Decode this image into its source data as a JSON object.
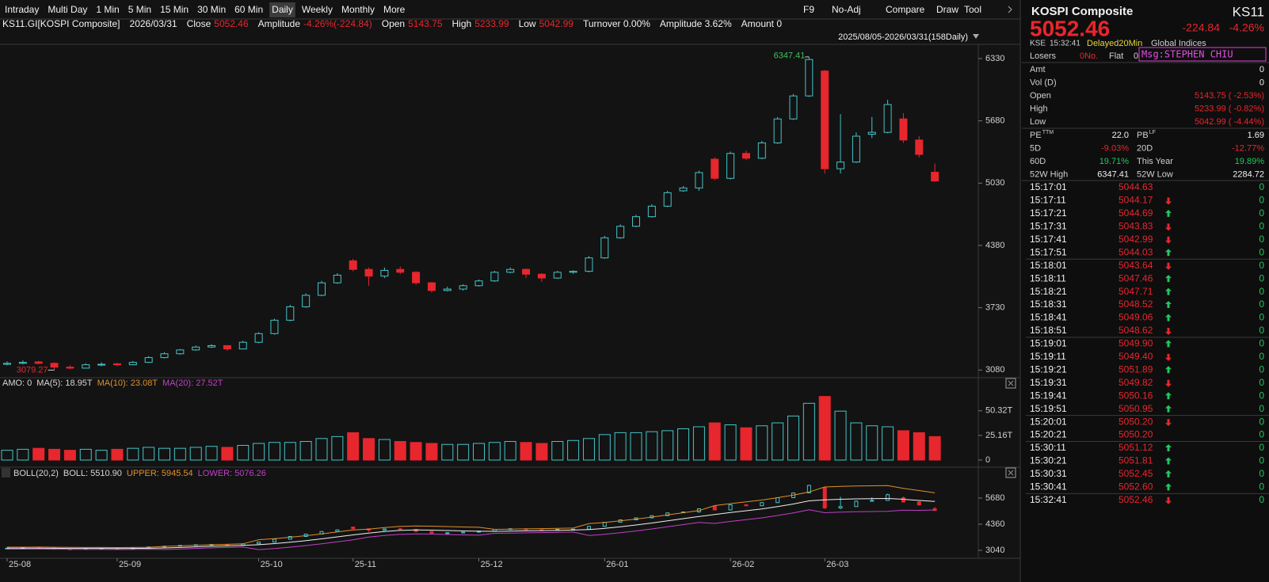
{
  "toolbar": {
    "items": [
      "Intraday",
      "Multi Day",
      "1 Min",
      "5 Min",
      "15 Min",
      "30 Min",
      "60 Min",
      "Daily",
      "Weekly",
      "Monthly",
      "More"
    ],
    "active": 7,
    "right": [
      "F9",
      "No-Adj",
      "Compare",
      "Draw",
      "Tool"
    ]
  },
  "info": [
    {
      "label": "KS11.GI[KOSPI Composite]"
    },
    {
      "label": "2026/03/31"
    },
    {
      "label": "Close",
      "value": "5052.46"
    },
    {
      "label": "Amplitude",
      "value": "-4.26%(-224.84)"
    },
    {
      "label": "Open",
      "value": "5143.75"
    },
    {
      "label": "High",
      "value": "5233.99"
    },
    {
      "label": "Low",
      "value": "5042.99"
    },
    {
      "label": "Turnover 0.00%"
    },
    {
      "label": "Amplitude 3.62%"
    },
    {
      "label": "Amount 0"
    }
  ],
  "chart": {
    "type": "candlestick",
    "range": "2025/08/05-2026/03/31(158Daily)",
    "colors": {
      "up": "#45c4c8",
      "down": "#e8262d"
    },
    "ylim": [
      3000,
      6470
    ],
    "yticks": [
      6330,
      5680,
      5030,
      4380,
      3730,
      3080
    ],
    "high_mark": 51,
    "low_mark": 3,
    "candles": [
      [
        3140,
        3170,
        3130,
        3150
      ],
      [
        3150,
        3180,
        3140,
        3160
      ],
      [
        3165,
        3175,
        3140,
        3150
      ],
      [
        3150,
        3160,
        3079.27,
        3110
      ],
      [
        3110,
        3130,
        3090,
        3100
      ],
      [
        3100,
        3150,
        3095,
        3135
      ],
      [
        3135,
        3160,
        3120,
        3140
      ],
      [
        3145,
        3155,
        3120,
        3135
      ],
      [
        3135,
        3175,
        3130,
        3160
      ],
      [
        3160,
        3225,
        3155,
        3210
      ],
      [
        3210,
        3265,
        3200,
        3250
      ],
      [
        3250,
        3300,
        3240,
        3290
      ],
      [
        3290,
        3335,
        3280,
        3320
      ],
      [
        3320,
        3350,
        3310,
        3335
      ],
      [
        3335,
        3340,
        3280,
        3300
      ],
      [
        3300,
        3385,
        3295,
        3370
      ],
      [
        3370,
        3475,
        3360,
        3460
      ],
      [
        3460,
        3615,
        3450,
        3600
      ],
      [
        3600,
        3760,
        3590,
        3740
      ],
      [
        3740,
        3880,
        3730,
        3860
      ],
      [
        3860,
        4010,
        3850,
        3990
      ],
      [
        3990,
        4090,
        3980,
        4070
      ],
      [
        4220,
        4240,
        4110,
        4130
      ],
      [
        4130,
        4150,
        3960,
        4060
      ],
      [
        4060,
        4150,
        4040,
        4120
      ],
      [
        4130,
        4160,
        4080,
        4100
      ],
      [
        4100,
        4110,
        3970,
        3990
      ],
      [
        3990,
        4000,
        3890,
        3910
      ],
      [
        3910,
        3950,
        3900,
        3925
      ],
      [
        3925,
        3975,
        3910,
        3960
      ],
      [
        3960,
        4025,
        3950,
        4010
      ],
      [
        4010,
        4115,
        4000,
        4100
      ],
      [
        4100,
        4150,
        4090,
        4130
      ],
      [
        4130,
        4140,
        4040,
        4080
      ],
      [
        4080,
        4090,
        4000,
        4040
      ],
      [
        4040,
        4115,
        4030,
        4100
      ],
      [
        4100,
        4120,
        4085,
        4110
      ],
      [
        4110,
        4270,
        4100,
        4250
      ],
      [
        4250,
        4480,
        4240,
        4460
      ],
      [
        4460,
        4600,
        4450,
        4580
      ],
      [
        4580,
        4700,
        4570,
        4680
      ],
      [
        4680,
        4810,
        4670,
        4790
      ],
      [
        4790,
        4950,
        4780,
        4930
      ],
      [
        4950,
        5000,
        4940,
        4980
      ],
      [
        4980,
        5160,
        4950,
        5140
      ],
      [
        5280,
        5300,
        5060,
        5080
      ],
      [
        5080,
        5360,
        5070,
        5340
      ],
      [
        5340,
        5370,
        5270,
        5290
      ],
      [
        5290,
        5470,
        5280,
        5450
      ],
      [
        5450,
        5720,
        5440,
        5700
      ],
      [
        5700,
        5960,
        5690,
        5940
      ],
      [
        5940,
        6347.41,
        5930,
        6320
      ],
      [
        6200,
        6210,
        5130,
        5180
      ],
      [
        5180,
        5750,
        5130,
        5250
      ],
      [
        5250,
        5560,
        5240,
        5520
      ],
      [
        5540,
        5720,
        5500,
        5560
      ],
      [
        5560,
        5900,
        5550,
        5850
      ],
      [
        5700,
        5760,
        5450,
        5480
      ],
      [
        5480,
        5520,
        5300,
        5330
      ],
      [
        5143.75,
        5233.99,
        5042.99,
        5052.46
      ]
    ],
    "volume": {
      "legend": [
        {
          "text": "AMO: 0",
          "color": "#d8d8d8"
        },
        {
          "text": "MA(5): 18.95T",
          "color": "#d8d8d8"
        },
        {
          "text": "MA(10): 23.08T",
          "color": "#e0902a"
        },
        {
          "text": "MA(20): 27.52T",
          "color": "#c040c8"
        }
      ],
      "ylim": [
        0,
        72
      ],
      "yticks": [
        {
          "value": 50.32,
          "label": "50.32T"
        },
        {
          "value": 25.16,
          "label": "25.16T"
        },
        0
      ],
      "values": [
        10,
        11,
        12,
        11,
        10,
        11,
        10,
        11,
        12,
        13,
        12,
        12,
        13,
        14,
        13,
        15,
        17,
        18,
        18,
        19,
        22,
        24,
        28,
        22,
        21,
        19,
        18,
        17,
        16,
        16,
        17,
        18,
        19,
        18,
        17,
        19,
        20,
        22,
        26,
        28,
        28,
        29,
        30,
        32,
        34,
        38,
        36,
        33,
        35,
        38,
        45,
        58,
        65,
        50,
        38,
        35,
        34,
        30,
        28,
        24
      ]
    },
    "boll": {
      "legend": [
        {
          "text": "BOLL(20,2)",
          "color": "#d8d8d8"
        },
        {
          "text": "BOLL: 5510.90",
          "color": "#d8d8d8"
        },
        {
          "text": "UPPER: 5945.54",
          "color": "#e0902a"
        },
        {
          "text": "LOWER: 5076.26",
          "color": "#c040c8"
        }
      ],
      "ylim": [
        2640,
        6600
      ],
      "yticks": [
        5680,
        4360,
        3040
      ],
      "colors": {
        "upper": "#e0902a",
        "mid": "#f0f0f0",
        "lower": "#c040c8"
      },
      "upper": [
        3200,
        3202,
        3203,
        3195,
        3187,
        3185,
        3185,
        3182,
        3185,
        3195,
        3240,
        3265,
        3295,
        3325,
        3345,
        3370,
        3575,
        3630,
        3700,
        3780,
        3870,
        3970,
        4070,
        4110,
        4190,
        4250,
        4270,
        4260,
        4240,
        4220,
        4205,
        4100,
        4110,
        4125,
        4135,
        4150,
        4165,
        4390,
        4450,
        4530,
        4620,
        4720,
        4830,
        4940,
        5050,
        5300,
        5400,
        5490,
        5580,
        5700,
        5830,
        5990,
        6240,
        6270,
        6290,
        6300,
        6310,
        6170,
        6060,
        5945.54
      ],
      "mid": [
        3150,
        3152,
        3153,
        3145,
        3137,
        3135,
        3135,
        3132,
        3135,
        3145,
        3160,
        3185,
        3215,
        3245,
        3265,
        3290,
        3325,
        3380,
        3450,
        3530,
        3620,
        3720,
        3820,
        3910,
        3990,
        4050,
        4070,
        4060,
        4040,
        4020,
        4005,
        4000,
        4010,
        4025,
        4035,
        4050,
        4065,
        4090,
        4150,
        4230,
        4320,
        4420,
        4530,
        4640,
        4750,
        4850,
        4950,
        5040,
        5130,
        5250,
        5380,
        5540,
        5590,
        5620,
        5640,
        5650,
        5660,
        5620,
        5560,
        5510.9
      ],
      "lower": [
        3100,
        3102,
        3103,
        3095,
        3087,
        3085,
        3085,
        3082,
        3085,
        3095,
        3080,
        3105,
        3135,
        3165,
        3185,
        3210,
        3075,
        3130,
        3200,
        3280,
        3370,
        3470,
        3570,
        3710,
        3790,
        3850,
        3870,
        3860,
        3840,
        3820,
        3805,
        3900,
        3910,
        3925,
        3935,
        3950,
        3965,
        3790,
        3850,
        3930,
        4020,
        4120,
        4230,
        4340,
        4450,
        4400,
        4500,
        4590,
        4680,
        4800,
        4930,
        5090,
        4940,
        4970,
        4990,
        5000,
        5010,
        5070,
        5060,
        5076.26
      ]
    },
    "x_labels": [
      {
        "label": "25-08",
        "index": 0
      },
      {
        "label": "25-09",
        "index": 7
      },
      {
        "label": "25-10",
        "index": 16
      },
      {
        "label": "25-11",
        "index": 22
      },
      {
        "label": "25-12",
        "index": 30
      },
      {
        "label": "26-01",
        "index": 38
      },
      {
        "label": "26-02",
        "index": 46
      },
      {
        "label": "26-03",
        "index": 52
      }
    ]
  },
  "quote": {
    "name": "KOSPI Composite",
    "code": "KS11",
    "price": "5052.46",
    "change": "-224.84",
    "change_pct": "-4.26%",
    "exchange": "KSE",
    "time": "15:32:41",
    "delay": "Delayed20Min",
    "link": "Global Indices",
    "losers_label": "Losers",
    "losers": "0No.",
    "flat_label": "Flat",
    "flat": "0",
    "msg": "Msg:STEPHEN CHIU"
  },
  "rows": [
    {
      "label": "Amt",
      "value": "0"
    },
    {
      "label": "Vol (D)",
      "value": "0"
    },
    {
      "label": "Open",
      "value": "5143.75 ( -2.53%)",
      "tone": "down"
    },
    {
      "label": "High",
      "value": "5233.99 ( -0.82%)",
      "tone": "down"
    },
    {
      "label": "Low",
      "value": "5042.99 ( -4.44%)",
      "tone": "down"
    }
  ],
  "stats": [
    [
      {
        "label": "PE",
        "sup": "TTM",
        "value": "22.0"
      },
      {
        "label": "PB",
        "sup": "LF",
        "value": "1.69"
      }
    ],
    [
      {
        "label": "5D",
        "value": "-9.03%",
        "tone": "down"
      },
      {
        "label": "20D",
        "value": "-12.77%",
        "tone": "down"
      }
    ],
    [
      {
        "label": "60D",
        "value": "19.71%",
        "tone": "up"
      },
      {
        "label": "This Year",
        "value": "19.89%",
        "tone": "up"
      }
    ],
    [
      {
        "label": "52W High",
        "value": "6347.41"
      },
      {
        "label": "52W Low",
        "value": "2284.72"
      }
    ]
  ],
  "ticks": [
    {
      "time": "15:17:01",
      "price": "5044.63",
      "vol": "0"
    },
    {
      "time": "15:17:11",
      "price": "5044.17",
      "dir": "down",
      "vol": "0"
    },
    {
      "time": "15:17:21",
      "price": "5044.69",
      "dir": "up",
      "vol": "0"
    },
    {
      "time": "15:17:31",
      "price": "5043.83",
      "dir": "down",
      "vol": "0"
    },
    {
      "time": "15:17:41",
      "price": "5042.99",
      "dir": "down",
      "vol": "0"
    },
    {
      "time": "15:17:51",
      "price": "5044.03",
      "dir": "up",
      "vol": "0"
    },
    {
      "time": "15:18:01",
      "price": "5043.64",
      "dir": "down",
      "vol": "0"
    },
    {
      "time": "15:18:11",
      "price": "5047.46",
      "dir": "up",
      "vol": "0"
    },
    {
      "time": "15:18:21",
      "price": "5047.71",
      "dir": "up",
      "vol": "0"
    },
    {
      "time": "15:18:31",
      "price": "5048.52",
      "dir": "up",
      "vol": "0"
    },
    {
      "time": "15:18:41",
      "price": "5049.06",
      "dir": "up",
      "vol": "0"
    },
    {
      "time": "15:18:51",
      "price": "5048.62",
      "dir": "down",
      "vol": "0"
    },
    {
      "time": "15:19:01",
      "price": "5049.90",
      "dir": "up",
      "vol": "0"
    },
    {
      "time": "15:19:11",
      "price": "5049.40",
      "dir": "down",
      "vol": "0"
    },
    {
      "time": "15:19:21",
      "price": "5051.89",
      "dir": "up",
      "vol": "0"
    },
    {
      "time": "15:19:31",
      "price": "5049.82",
      "dir": "down",
      "vol": "0"
    },
    {
      "time": "15:19:41",
      "price": "5050.16",
      "dir": "up",
      "vol": "0"
    },
    {
      "time": "15:19:51",
      "price": "5050.95",
      "dir": "up",
      "vol": "0"
    },
    {
      "time": "15:20:01",
      "price": "5050.20",
      "dir": "down",
      "vol": "0"
    },
    {
      "time": "15:20:21",
      "price": "5050.20",
      "vol": "0"
    },
    {
      "time": "15:30:11",
      "price": "5051.12",
      "dir": "up",
      "vol": "0"
    },
    {
      "time": "15:30:21",
      "price": "5051.81",
      "dir": "up",
      "vol": "0"
    },
    {
      "time": "15:30:31",
      "price": "5052.45",
      "dir": "up",
      "vol": "0"
    },
    {
      "time": "15:30:41",
      "price": "5052.60",
      "dir": "up",
      "vol": "0"
    },
    {
      "time": "15:32:41",
      "price": "5052.46",
      "dir": "down",
      "vol": "0"
    }
  ]
}
